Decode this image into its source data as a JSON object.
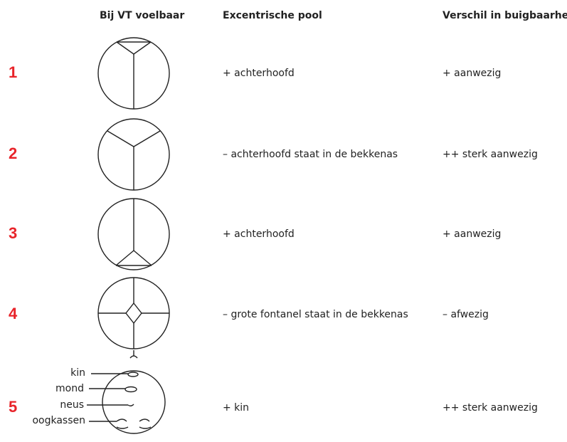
{
  "header": {
    "col1": "Bij VT voelbaar",
    "col2": "Excentrische pool",
    "col3": "Verschil in buigbaarheid"
  },
  "rows": [
    {
      "number": "1",
      "pool": "+ achterhoofd",
      "verschil": "+ aanwezig"
    },
    {
      "number": "2",
      "pool": "– achterhoofd staat in de bekkenas",
      "verschil": "++ sterk aanwezig"
    },
    {
      "number": "3",
      "pool": "+ achterhoofd",
      "verschil": "+ aanwezig"
    },
    {
      "number": "4",
      "pool": "– grote fontanel staat in de bekkenas",
      "verschil": "– afwezig"
    },
    {
      "number": "5",
      "pool": "+ kin",
      "verschil": "++ sterk aanwezig"
    }
  ],
  "face_labels": [
    "kin",
    "mond",
    "neus",
    "oogkassen"
  ]
}
